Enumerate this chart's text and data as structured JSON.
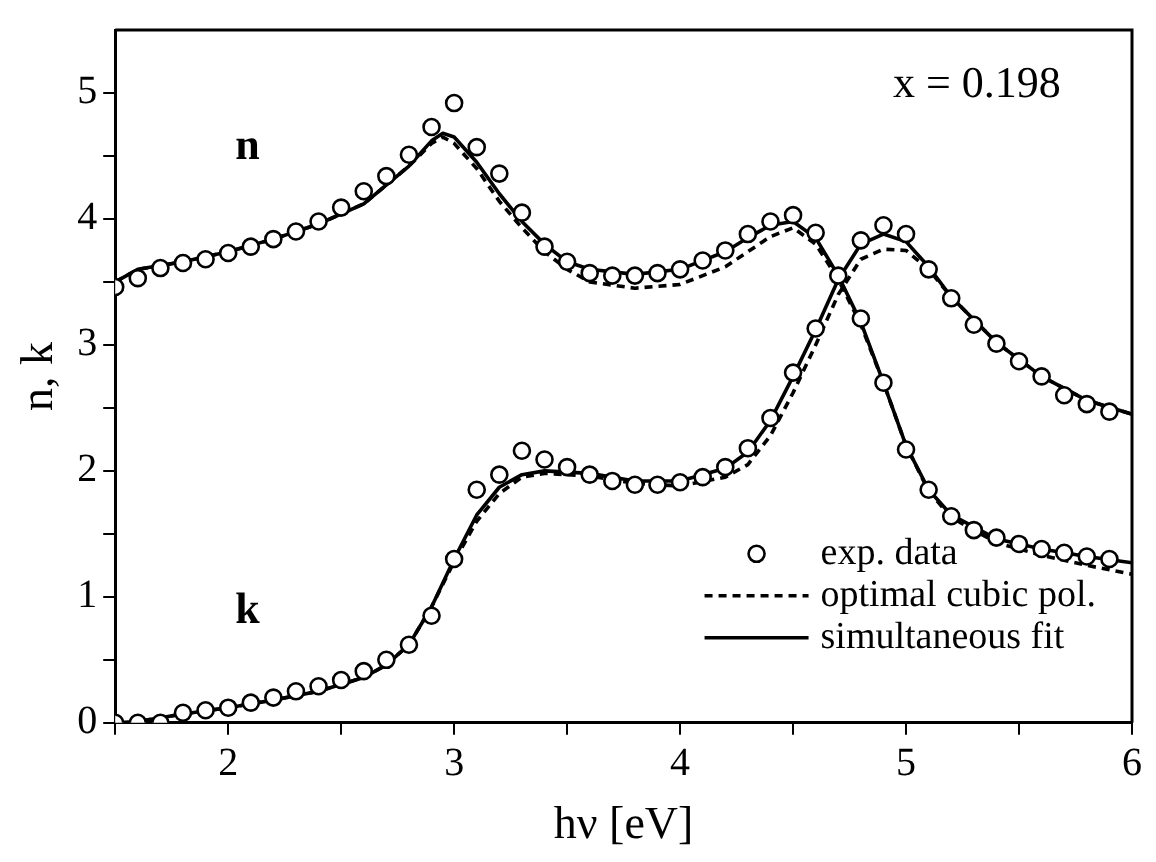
{
  "chart_data": {
    "type": "scatter",
    "xlabel": "hν [eV]",
    "ylabel": "n, k",
    "xlim": [
      1.5,
      6
    ],
    "ylim": [
      0,
      5.5
    ],
    "xticks": [
      {
        "value": 1.5,
        "label": null
      },
      2,
      {
        "value": 2.5,
        "label": null
      },
      3,
      {
        "value": 3.5,
        "label": null
      },
      4,
      {
        "value": 4.5,
        "label": null
      },
      5,
      {
        "value": 5.5,
        "label": null
      },
      6
    ],
    "yticks": [
      0,
      {
        "value": 0.5,
        "label": null
      },
      1,
      {
        "value": 1.5,
        "label": null
      },
      2,
      {
        "value": 2.5,
        "label": null
      },
      3,
      {
        "value": 3.5,
        "label": null
      },
      4,
      {
        "value": 4.5,
        "label": null
      },
      5
    ],
    "grid": false,
    "legend": "bottom right",
    "annotations": [
      "x = 0.198",
      "n",
      "k"
    ],
    "series": [
      {
        "name": "exp. data",
        "marker": "circle",
        "color": "#000000",
        "x": [
          1.5,
          1.6,
          1.7,
          1.8,
          1.9,
          2.0,
          2.1,
          2.2,
          2.3,
          2.4,
          2.5,
          2.6,
          2.7,
          2.8,
          2.9,
          3.0,
          3.1,
          3.2,
          3.3,
          3.4,
          3.5,
          3.6,
          3.7,
          3.8,
          3.9,
          4.0,
          4.1,
          4.2,
          4.3,
          4.4,
          4.5,
          4.6,
          4.7,
          4.8,
          4.9,
          5.0,
          5.1,
          5.2,
          5.3,
          5.4,
          5.5,
          5.6,
          5.7,
          5.8,
          5.9
        ],
        "values": [
          3.46,
          3.53,
          3.61,
          3.65,
          3.68,
          3.73,
          3.78,
          3.84,
          3.9,
          3.98,
          4.09,
          4.22,
          4.34,
          4.51,
          4.73,
          4.92,
          4.57,
          4.36,
          4.05,
          3.78,
          3.66,
          3.57,
          3.55,
          3.55,
          3.57,
          3.6,
          3.67,
          3.75,
          3.88,
          3.98,
          4.03,
          3.89,
          3.55,
          3.21,
          2.7,
          2.17,
          1.85,
          1.64,
          1.53,
          1.47,
          1.42,
          1.38,
          1.35,
          1.32,
          1.3
        ]
      },
      {
        "marker": "circle",
        "color": "#000000",
        "x": [
          1.5,
          1.6,
          1.7,
          1.8,
          1.9,
          2.0,
          2.1,
          2.2,
          2.3,
          2.4,
          2.5,
          2.6,
          2.7,
          2.8,
          2.9,
          3.0,
          3.1,
          3.2,
          3.3,
          3.4,
          3.5,
          3.6,
          3.7,
          3.8,
          3.9,
          4.0,
          4.1,
          4.2,
          4.3,
          4.4,
          4.5,
          4.6,
          4.8,
          4.9,
          5.0,
          5.1,
          5.2,
          5.3,
          5.4,
          5.5,
          5.6,
          5.7,
          5.8,
          5.9
        ],
        "values": [
          0,
          0,
          0,
          0.08,
          0.1,
          0.12,
          0.16,
          0.2,
          0.25,
          0.29,
          0.34,
          0.41,
          0.5,
          0.62,
          0.85,
          1.3,
          1.85,
          1.97,
          2.16,
          2.09,
          2.03,
          1.97,
          1.92,
          1.89,
          1.89,
          1.91,
          1.95,
          2.03,
          2.18,
          2.42,
          2.78,
          3.13,
          3.83,
          3.95,
          3.88,
          3.6,
          3.37,
          3.16,
          3.01,
          2.87,
          2.75,
          2.6,
          2.53,
          2.47
        ]
      },
      {
        "name": "optimal cubic pol.",
        "type": "line",
        "line_style": "dashed",
        "color": "#000000",
        "x": [
          1.5,
          1.6,
          1.8,
          2.0,
          2.2,
          2.4,
          2.6,
          2.8,
          2.9,
          2.95,
          3.0,
          3.1,
          3.2,
          3.3,
          3.4,
          3.5,
          3.6,
          3.8,
          4.0,
          4.2,
          4.3,
          4.4,
          4.5,
          4.6,
          4.7,
          4.8,
          4.9,
          5.0,
          5.1,
          5.2,
          5.4,
          5.6,
          5.8,
          6.0
        ],
        "values": [
          3.5,
          3.6,
          3.66,
          3.74,
          3.84,
          3.96,
          4.12,
          4.42,
          4.6,
          4.65,
          4.6,
          4.4,
          4.14,
          3.93,
          3.74,
          3.6,
          3.5,
          3.45,
          3.48,
          3.62,
          3.74,
          3.86,
          3.93,
          3.8,
          3.52,
          3.16,
          2.7,
          2.2,
          1.84,
          1.63,
          1.43,
          1.33,
          1.25,
          1.18
        ]
      },
      {
        "type": "line",
        "line_style": "dashed",
        "color": "#000000",
        "x": [
          1.5,
          1.6,
          1.8,
          2.0,
          2.2,
          2.4,
          2.6,
          2.7,
          2.8,
          2.9,
          3.0,
          3.1,
          3.2,
          3.3,
          3.4,
          3.6,
          3.8,
          4.0,
          4.2,
          4.3,
          4.4,
          4.5,
          4.6,
          4.7,
          4.8,
          4.9,
          5.0,
          5.1,
          5.2,
          5.4,
          5.6,
          5.8,
          6.0
        ],
        "values": [
          0,
          0.01,
          0.07,
          0.12,
          0.18,
          0.25,
          0.36,
          0.46,
          0.62,
          0.92,
          1.28,
          1.6,
          1.82,
          1.95,
          1.98,
          1.96,
          1.9,
          1.88,
          1.95,
          2.05,
          2.28,
          2.62,
          3.0,
          3.4,
          3.68,
          3.76,
          3.75,
          3.6,
          3.38,
          3.02,
          2.75,
          2.56,
          2.45
        ]
      },
      {
        "name": "simultaneous fit",
        "type": "line",
        "line_style": "solid",
        "color": "#000000",
        "x": [
          1.5,
          1.6,
          1.8,
          2.0,
          2.2,
          2.4,
          2.6,
          2.8,
          2.9,
          2.95,
          3.0,
          3.1,
          3.2,
          3.3,
          3.4,
          3.5,
          3.6,
          3.8,
          4.0,
          4.2,
          4.3,
          4.4,
          4.5,
          4.6,
          4.7,
          4.8,
          4.9,
          5.0,
          5.1,
          5.2,
          5.4,
          5.6,
          5.8,
          6.0
        ],
        "values": [
          3.5,
          3.6,
          3.66,
          3.74,
          3.84,
          3.96,
          4.12,
          4.42,
          4.62,
          4.68,
          4.65,
          4.45,
          4.2,
          3.98,
          3.8,
          3.66,
          3.6,
          3.56,
          3.6,
          3.74,
          3.85,
          3.95,
          3.98,
          3.85,
          3.55,
          3.18,
          2.7,
          2.2,
          1.85,
          1.65,
          1.46,
          1.38,
          1.32,
          1.27
        ]
      },
      {
        "type": "line",
        "line_style": "solid",
        "color": "#000000",
        "x": [
          1.5,
          1.6,
          1.8,
          2.0,
          2.2,
          2.4,
          2.6,
          2.7,
          2.8,
          2.9,
          3.0,
          3.1,
          3.2,
          3.3,
          3.4,
          3.6,
          3.8,
          4.0,
          4.2,
          4.3,
          4.4,
          4.5,
          4.6,
          4.7,
          4.8,
          4.9,
          5.0,
          5.1,
          5.2,
          5.4,
          5.6,
          5.8,
          6.0
        ],
        "values": [
          0,
          0.01,
          0.07,
          0.12,
          0.18,
          0.25,
          0.36,
          0.46,
          0.62,
          0.92,
          1.3,
          1.65,
          1.87,
          1.97,
          2.0,
          1.98,
          1.92,
          1.92,
          2.02,
          2.15,
          2.4,
          2.75,
          3.12,
          3.52,
          3.8,
          3.88,
          3.82,
          3.62,
          3.38,
          3.02,
          2.75,
          2.56,
          2.45
        ]
      }
    ]
  }
}
